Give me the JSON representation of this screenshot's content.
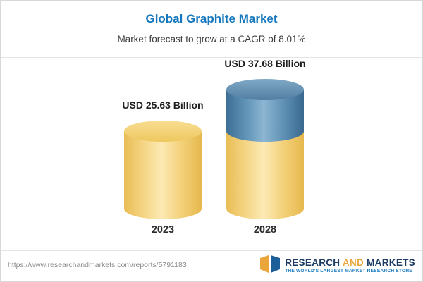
{
  "header": {
    "title": "Global Graphite Market",
    "subtitle": "Market forecast to grow at a CAGR of 8.01%"
  },
  "chart_data": {
    "type": "bar",
    "subtype": "3d-cylinder-stacked",
    "title": "Global Graphite Market",
    "subtitle": "Market forecast to grow at a CAGR of 8.01%",
    "cagr_percent": 8.01,
    "unit": "USD Billion",
    "categories": [
      "2023",
      "2028"
    ],
    "values": [
      25.63,
      37.68
    ],
    "value_labels": [
      "USD 25.63 Billion",
      "USD 37.68 Billion"
    ],
    "series": [
      {
        "name": "2023 base market size",
        "color": "#F2CC6E",
        "values": [
          25.63,
          25.63
        ]
      },
      {
        "name": "Growth by 2028",
        "color": "#4E83AB",
        "values": [
          0,
          12.05
        ]
      }
    ],
    "legend": "none",
    "grid": "off",
    "axes": "none"
  },
  "footer": {
    "url": "https://www.researchandmarkets.com/reports/5791183",
    "brand": {
      "research": "RESEARCH",
      "and": "AND",
      "markets": "MARKETS",
      "tagline": "THE WORLD'S LARGEST MARKET RESEARCH STORE"
    }
  }
}
